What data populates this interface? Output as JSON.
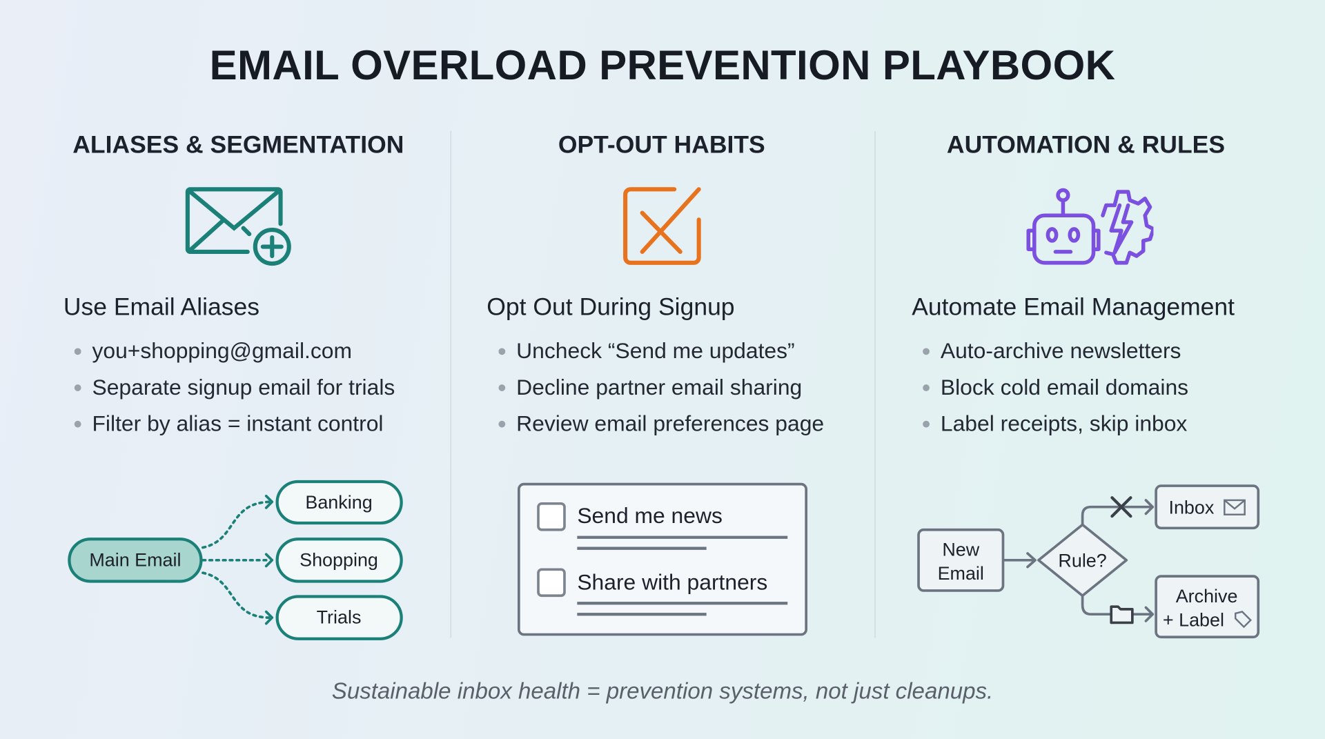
{
  "title": "EMAIL OVERLOAD PREVENTION PLAYBOOK",
  "columns": [
    {
      "heading": "ALIASES & SEGMENTATION",
      "icon": "envelope-plus-icon",
      "color": "#1a8078",
      "subheading": "Use Email Aliases",
      "bullets": [
        "you+shopping@gmail.com",
        "Separate signup email for trials",
        "Filter by alias = instant control"
      ],
      "diagram": {
        "source": "Main Email",
        "targets": [
          "Banking",
          "Shopping",
          "Trials"
        ]
      }
    },
    {
      "heading": "OPT-OUT HABITS",
      "icon": "checkbox-x-icon",
      "color": "#e8731e",
      "subheading": "Opt Out During Signup",
      "bullets": [
        "Uncheck “Send me updates”",
        "Decline partner email sharing",
        "Review email preferences page"
      ],
      "diagram": {
        "options": [
          {
            "label": "Send me news",
            "checked": false
          },
          {
            "label": "Share with partners",
            "checked": false
          }
        ]
      }
    },
    {
      "heading": "AUTOMATION & RULES",
      "icon": "robot-gear-icon",
      "color": "#7b4fe0",
      "subheading": "Automate Email Management",
      "bullets": [
        "Auto-archive newsletters",
        "Block cold email domains",
        "Label receipts, skip inbox"
      ],
      "diagram": {
        "start_line1": "New",
        "start_line2": "Email",
        "decision": "Rule?",
        "inbox": "Inbox",
        "archive_line1": "Archive",
        "archive_line2": "+ Label"
      }
    }
  ],
  "footer": "Sustainable inbox health = prevention systems, not just cleanups."
}
